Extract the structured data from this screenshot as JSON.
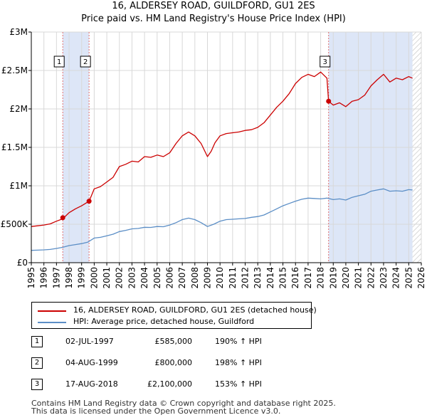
{
  "chart_data": {
    "type": "line",
    "title": "16, ALDERSEY ROAD, GUILDFORD, GU1 2ES",
    "subtitle": "Price paid vs. HM Land Registry's House Price Index (HPI)",
    "xlabel": "",
    "ylabel": "",
    "xlim": [
      1995,
      2026
    ],
    "ylim": [
      0,
      3000000
    ],
    "y_ticks": [
      0,
      500000,
      1000000,
      1500000,
      2000000,
      2500000,
      3000000
    ],
    "y_tick_labels": [
      "£0",
      "£500K",
      "£1M",
      "£1.5M",
      "£2M",
      "£2.5M",
      "£3M"
    ],
    "x_ticks": [
      1995,
      1996,
      1997,
      1998,
      1999,
      2000,
      2001,
      2002,
      2003,
      2004,
      2005,
      2006,
      2007,
      2008,
      2009,
      2010,
      2011,
      2012,
      2013,
      2014,
      2015,
      2016,
      2017,
      2018,
      2019,
      2020,
      2021,
      2022,
      2023,
      2024,
      2025,
      2026
    ],
    "grid": true,
    "series": [
      {
        "name": "16, ALDERSEY ROAD, GUILDFORD, GU1 2ES (detached house)",
        "color": "#cc0000",
        "x": [
          1995.0,
          1995.5,
          1996.0,
          1996.5,
          1997.0,
          1997.5,
          1998.0,
          1998.5,
          1999.0,
          1999.6,
          2000.0,
          2000.5,
          2001.0,
          2001.5,
          2002.0,
          2002.5,
          2003.0,
          2003.5,
          2004.0,
          2004.5,
          2005.0,
          2005.5,
          2006.0,
          2006.5,
          2007.0,
          2007.5,
          2008.0,
          2008.5,
          2009.0,
          2009.3,
          2009.6,
          2010.0,
          2010.5,
          2011.0,
          2011.5,
          2012.0,
          2012.5,
          2013.0,
          2013.5,
          2014.0,
          2014.5,
          2015.0,
          2015.5,
          2016.0,
          2016.5,
          2017.0,
          2017.5,
          2018.0,
          2018.5,
          2018.63,
          2019.0,
          2019.5,
          2020.0,
          2020.5,
          2021.0,
          2021.5,
          2022.0,
          2022.5,
          2023.0,
          2023.5,
          2024.0,
          2024.5,
          2025.0,
          2025.3
        ],
        "values": [
          470000,
          480000,
          490000,
          505000,
          540000,
          570000,
          650000,
          700000,
          740000,
          800000,
          960000,
          990000,
          1050000,
          1110000,
          1250000,
          1280000,
          1320000,
          1310000,
          1380000,
          1370000,
          1400000,
          1380000,
          1430000,
          1550000,
          1650000,
          1700000,
          1650000,
          1550000,
          1380000,
          1450000,
          1560000,
          1650000,
          1680000,
          1690000,
          1700000,
          1720000,
          1730000,
          1760000,
          1820000,
          1920000,
          2020000,
          2100000,
          2200000,
          2330000,
          2410000,
          2450000,
          2420000,
          2480000,
          2400000,
          2100000,
          2050000,
          2080000,
          2030000,
          2100000,
          2120000,
          2180000,
          2300000,
          2380000,
          2450000,
          2350000,
          2400000,
          2380000,
          2420000,
          2400000
        ]
      },
      {
        "name": "HPI: Average price, detached house, Guildford",
        "color": "#5b8ec6",
        "x": [
          1995.0,
          1995.5,
          1996.0,
          1996.5,
          1997.0,
          1997.5,
          1998.0,
          1998.5,
          1999.0,
          1999.5,
          2000.0,
          2000.5,
          2001.0,
          2001.5,
          2002.0,
          2002.5,
          2003.0,
          2003.5,
          2004.0,
          2004.5,
          2005.0,
          2005.5,
          2006.0,
          2006.5,
          2007.0,
          2007.5,
          2008.0,
          2008.5,
          2009.0,
          2009.5,
          2010.0,
          2010.5,
          2011.0,
          2011.5,
          2012.0,
          2012.5,
          2013.0,
          2013.5,
          2014.0,
          2014.5,
          2015.0,
          2015.5,
          2016.0,
          2016.5,
          2017.0,
          2017.5,
          2018.0,
          2018.5,
          2019.0,
          2019.5,
          2020.0,
          2020.5,
          2021.0,
          2021.5,
          2022.0,
          2022.5,
          2023.0,
          2023.5,
          2024.0,
          2024.5,
          2025.0,
          2025.3
        ],
        "values": [
          160000,
          163000,
          167000,
          172000,
          185000,
          200000,
          222000,
          235000,
          248000,
          268000,
          320000,
          330000,
          350000,
          370000,
          405000,
          420000,
          440000,
          445000,
          460000,
          458000,
          470000,
          468000,
          490000,
          520000,
          560000,
          580000,
          560000,
          520000,
          470000,
          500000,
          540000,
          560000,
          565000,
          570000,
          575000,
          590000,
          600000,
          620000,
          660000,
          700000,
          740000,
          770000,
          800000,
          825000,
          840000,
          835000,
          830000,
          840000,
          820000,
          830000,
          815000,
          850000,
          870000,
          890000,
          930000,
          945000,
          960000,
          930000,
          935000,
          930000,
          950000,
          945000
        ]
      }
    ],
    "sales": [
      {
        "label": "1",
        "x": 1997.5,
        "value": 585000,
        "date": "02-JUL-1997",
        "price": "£585,000",
        "hpi": "190% ↑ HPI"
      },
      {
        "label": "2",
        "x": 1999.59,
        "value": 800000,
        "date": "04-AUG-1999",
        "price": "£800,000",
        "hpi": "198% ↑ HPI"
      },
      {
        "label": "3",
        "x": 2018.63,
        "value": 2100000,
        "date": "17-AUG-2018",
        "price": "£2,100,000",
        "hpi": "153% ↑ HPI"
      }
    ],
    "shaded_regions": [
      [
        1997.5,
        1999.59
      ],
      [
        2018.63,
        2025.3
      ]
    ],
    "hatched_from": 2025.3,
    "colors": {
      "sale_marker": "#cc0000",
      "shade": "#dde6f7",
      "hatch": "#cccccc",
      "vline": "#e07070"
    }
  },
  "footer": {
    "line1": "Contains HM Land Registry data © Crown copyright and database right 2025.",
    "line2": "This data is licensed under the Open Government Licence v3.0."
  }
}
